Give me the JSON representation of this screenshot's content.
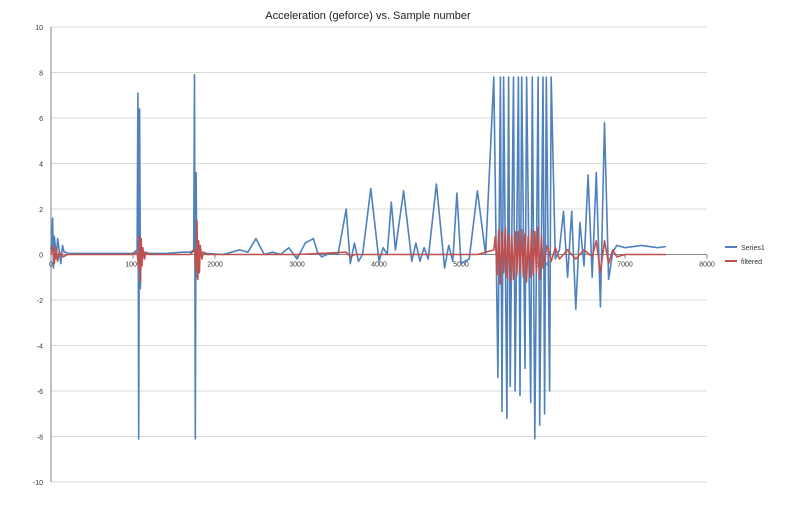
{
  "chart_data": {
    "type": "line",
    "title": "Acceleration (geforce) vs. Sample number",
    "xlabel": "",
    "ylabel": "",
    "xlim": [
      0,
      8000
    ],
    "ylim": [
      -10,
      10
    ],
    "x_ticks": [
      "0",
      "1000",
      "2000",
      "3000",
      "4000",
      "5000",
      "6000",
      "7000",
      "8000"
    ],
    "y_ticks": [
      "10",
      "8",
      "6",
      "4",
      "2",
      "0",
      "-2",
      "-4",
      "-6",
      "-8",
      "-10"
    ],
    "grid": "horizontal",
    "legend_position": "right",
    "series": [
      {
        "name": "Series1",
        "color": "#4f81bd",
        "x": [
          0,
          20,
          30,
          40,
          55,
          65,
          80,
          100,
          120,
          140,
          160,
          180,
          200,
          300,
          500,
          800,
          1000,
          1050,
          1060,
          1070,
          1080,
          1090,
          1100,
          1110,
          1120,
          1135,
          1150,
          1200,
          1400,
          1600,
          1700,
          1740,
          1750,
          1760,
          1770,
          1780,
          1790,
          1800,
          1815,
          1830,
          1900,
          2100,
          2200,
          2300,
          2400,
          2500,
          2600,
          2700,
          2800,
          2900,
          3000,
          3100,
          3200,
          3250,
          3300,
          3400,
          3500,
          3600,
          3650,
          3700,
          3750,
          3800,
          3900,
          4000,
          4050,
          4100,
          4150,
          4200,
          4300,
          4400,
          4450,
          4500,
          4550,
          4600,
          4700,
          4800,
          4850,
          4900,
          4950,
          5000,
          5100,
          5200,
          5300,
          5400,
          5450,
          5480,
          5500,
          5520,
          5560,
          5580,
          5600,
          5640,
          5660,
          5700,
          5720,
          5740,
          5780,
          5800,
          5850,
          5870,
          5900,
          5940,
          5960,
          6000,
          6020,
          6040,
          6080,
          6100,
          6150,
          6200,
          6250,
          6300,
          6350,
          6400,
          6450,
          6500,
          6550,
          6600,
          6650,
          6700,
          6750,
          6800,
          6850,
          6900,
          7000,
          7200,
          7400,
          7500
        ],
        "y": [
          0.2,
          1.6,
          -0.6,
          0.8,
          0.3,
          -0.2,
          0.7,
          0.2,
          -0.4,
          0.4,
          0.1,
          0.1,
          0.05,
          0.05,
          0.05,
          0.05,
          0.05,
          0.2,
          7.1,
          -8.1,
          6.4,
          -1.5,
          0.4,
          -0.3,
          0.2,
          0.1,
          0.05,
          0.05,
          0.05,
          0.1,
          0.1,
          0.2,
          7.9,
          -8.1,
          3.6,
          -1.0,
          0.5,
          -0.4,
          0.2,
          0.1,
          0.05,
          0.0,
          0.1,
          0.2,
          0.1,
          0.7,
          0.0,
          0.1,
          0.0,
          0.3,
          -0.2,
          0.5,
          0.7,
          0.1,
          -0.1,
          0.05,
          0.0,
          2.0,
          -0.4,
          0.5,
          -0.3,
          0.0,
          2.9,
          -0.3,
          0.3,
          0.0,
          2.3,
          0.2,
          2.8,
          -0.3,
          0.5,
          -0.3,
          0.3,
          -0.2,
          3.1,
          -0.6,
          0.4,
          -0.3,
          2.7,
          -0.4,
          -0.2,
          2.8,
          0.0,
          7.8,
          -5.4,
          7.8,
          -6.9,
          7.8,
          -7.2,
          7.8,
          -5.8,
          7.8,
          -6.0,
          7.8,
          -6.2,
          7.8,
          -5.0,
          7.8,
          -6.5,
          7.8,
          -8.1,
          7.8,
          -7.5,
          7.8,
          -7.0,
          7.8,
          -6.0,
          7.8,
          -0.2,
          0.2,
          1.9,
          -1.0,
          1.9,
          -2.4,
          1.4,
          -0.5,
          3.5,
          -1.0,
          3.6,
          -2.3,
          5.8,
          -1.1,
          0.1,
          0.4,
          0.3,
          0.4,
          0.3,
          0.35
        ]
      },
      {
        "name": "filtered",
        "color": "#c0504d",
        "x": [
          0,
          20,
          40,
          60,
          80,
          100,
          150,
          200,
          500,
          800,
          1000,
          1050,
          1070,
          1080,
          1090,
          1100,
          1110,
          1120,
          1140,
          1160,
          1200,
          1500,
          1700,
          1750,
          1770,
          1780,
          1790,
          1800,
          1810,
          1820,
          1840,
          1860,
          1900,
          2500,
          3000,
          3600,
          3650,
          3700,
          4000,
          4300,
          4600,
          4800,
          5000,
          5200,
          5400,
          5420,
          5440,
          5460,
          5480,
          5500,
          5520,
          5540,
          5560,
          5580,
          5600,
          5620,
          5640,
          5660,
          5680,
          5700,
          5720,
          5740,
          5760,
          5780,
          5800,
          5820,
          5840,
          5860,
          5880,
          5900,
          5920,
          5940,
          5960,
          5980,
          6000,
          6050,
          6100,
          6150,
          6200,
          6300,
          6400,
          6500,
          6600,
          6650,
          6700,
          6750,
          6800,
          6850,
          6900,
          7000,
          7300,
          7500
        ],
        "y": [
          0.0,
          0.4,
          -0.4,
          0.3,
          -0.3,
          0.1,
          -0.1,
          0.0,
          0.0,
          0.0,
          0.0,
          0.1,
          -0.6,
          0.8,
          -1.2,
          0.7,
          -0.5,
          0.3,
          -0.2,
          0.1,
          0.0,
          0.0,
          0.0,
          0.2,
          -0.7,
          1.5,
          -1.1,
          0.6,
          -0.8,
          0.4,
          -0.2,
          0.1,
          0.0,
          0.0,
          0.0,
          0.1,
          -0.1,
          0.0,
          0.0,
          0.0,
          0.0,
          0.0,
          0.0,
          0.0,
          0.2,
          0.8,
          -0.9,
          1.1,
          -1.3,
          1.0,
          -0.8,
          1.2,
          -1.0,
          0.9,
          -1.2,
          0.8,
          -1.1,
          1.0,
          -0.9,
          1.0,
          -0.8,
          1.1,
          -1.0,
          0.9,
          -1.2,
          0.8,
          -1.0,
          1.1,
          -0.9,
          1.0,
          -0.8,
          1.2,
          -1.1,
          0.8,
          -0.6,
          0.4,
          -0.3,
          0.3,
          -0.2,
          0.2,
          -0.2,
          0.2,
          -0.1,
          0.6,
          -0.8,
          0.6,
          -0.4,
          0.2,
          -0.1,
          0.0,
          0.0,
          0.0
        ]
      }
    ]
  }
}
